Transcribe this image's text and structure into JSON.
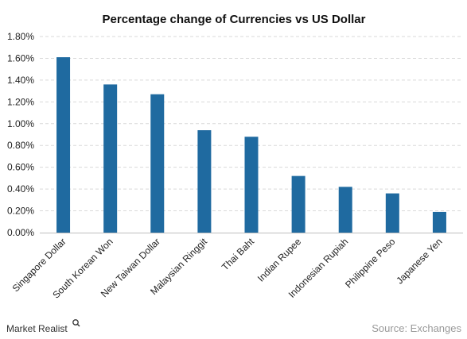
{
  "chart_data": {
    "type": "bar",
    "title": "Percentage change of Currencies vs US Dollar",
    "categories": [
      "Singapore Dollar",
      "South Korean Won",
      "New Taiwan Dollar",
      "Malaysian Ringgit",
      "Thai Baht",
      "Indian Rupee",
      "Indonesian Rupiah",
      "Philippine Peso",
      "Japanese Yen"
    ],
    "values": [
      1.61,
      1.36,
      1.27,
      0.94,
      0.88,
      0.52,
      0.42,
      0.36,
      0.19
    ],
    "ylim": [
      0,
      1.8
    ],
    "yticks": [
      "0.00%",
      "0.20%",
      "0.40%",
      "0.60%",
      "0.80%",
      "1.00%",
      "1.20%",
      "1.40%",
      "1.60%",
      "1.80%"
    ],
    "xlabel": "",
    "ylabel": "",
    "grid": true,
    "bar_color": "#1f6aa0"
  },
  "footer": {
    "brand": "Market Realist",
    "source": "Source: Exchanges"
  }
}
